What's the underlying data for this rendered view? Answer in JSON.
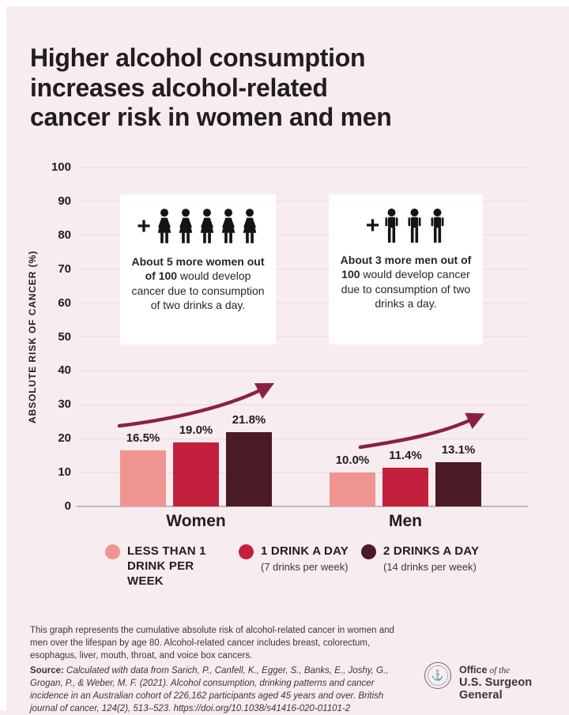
{
  "title": "Higher alcohol consumption increases alcohol-related cancer risk in women and men",
  "title_lines": [
    "Higher alcohol consumption",
    "increases alcohol-related",
    "cancer risk in women and men"
  ],
  "chart_data": {
    "type": "bar",
    "title": "Higher alcohol consumption increases alcohol-related cancer risk in women and men",
    "xlabel": "",
    "ylabel": "ABSOLUTE RISK OF CANCER (%)",
    "ylim": [
      0,
      100
    ],
    "yticks": [
      0,
      10,
      20,
      30,
      40,
      50,
      60,
      70,
      80,
      90,
      100
    ],
    "grid": true,
    "legend_position": "bottom",
    "categories": [
      "Women",
      "Men"
    ],
    "series": [
      {
        "name": "LESS THAN 1 DRINK PER WEEK",
        "color": "#f09491",
        "values": [
          16.5,
          10.0
        ]
      },
      {
        "name": "1 DRINK A DAY (7 drinks per week)",
        "color": "#c2203c",
        "values": [
          19.0,
          11.4
        ]
      },
      {
        "name": "2 DRINKS A DAY (14 drinks per week)",
        "color": "#4a1b24",
        "values": [
          21.8,
          13.1
        ]
      }
    ],
    "bar_labels": [
      [
        "16.5%",
        "19.0%",
        "21.8%"
      ],
      [
        "10.0%",
        "11.4%",
        "13.1%"
      ]
    ]
  },
  "annotations": {
    "women": {
      "icon_count": 5,
      "bold": "About 5 more women out of 100",
      "rest": " would develop cancer due to consumption of two drinks a day."
    },
    "men": {
      "icon_count": 3,
      "bold": "About 3 more men out of 100",
      "rest": " would develop cancer due to consumption of two drinks a day."
    }
  },
  "legend": [
    {
      "label": "LESS THAN 1 DRINK PER WEEK",
      "sub": "",
      "color": "#f09491"
    },
    {
      "label": "1 DRINK A DAY",
      "sub": "(7 drinks per week)",
      "color": "#c2203c"
    },
    {
      "label": "2 DRINKS A DAY",
      "sub": "(14 drinks per week)",
      "color": "#4a1b24"
    }
  ],
  "footer": {
    "note": "This graph represents the cumulative absolute risk of alcohol-related cancer in women and men over the lifespan by age 80. Alcohol-related cancer includes breast, colorectum, esophagus, liver, mouth, throat, and voice box cancers.",
    "source_label": "Source:",
    "source_text": " Calculated with data from Sarich, P., Canfell, K., Egger, S., Banks, E., Joshy, G., Grogan, P., & Weber, M. F. (2021). Alcohol consumption, drinking patterns and cancer incidence in an Australian cohort of 226,162 participants aged 45 years and over. British journal of cancer, 124(2), 513–523. https://doi.org/10.1038/s41416-020-01101-2"
  },
  "logo": {
    "line1_bold": "Office",
    "line1_italic": " of the",
    "line2": "U.S. Surgeon General",
    "seal": "anchor-seal"
  },
  "colors": {
    "background": "#f7edf0",
    "arrow": "#8b2140",
    "gridline": "#ecd8dd",
    "text": "#221d1e"
  }
}
